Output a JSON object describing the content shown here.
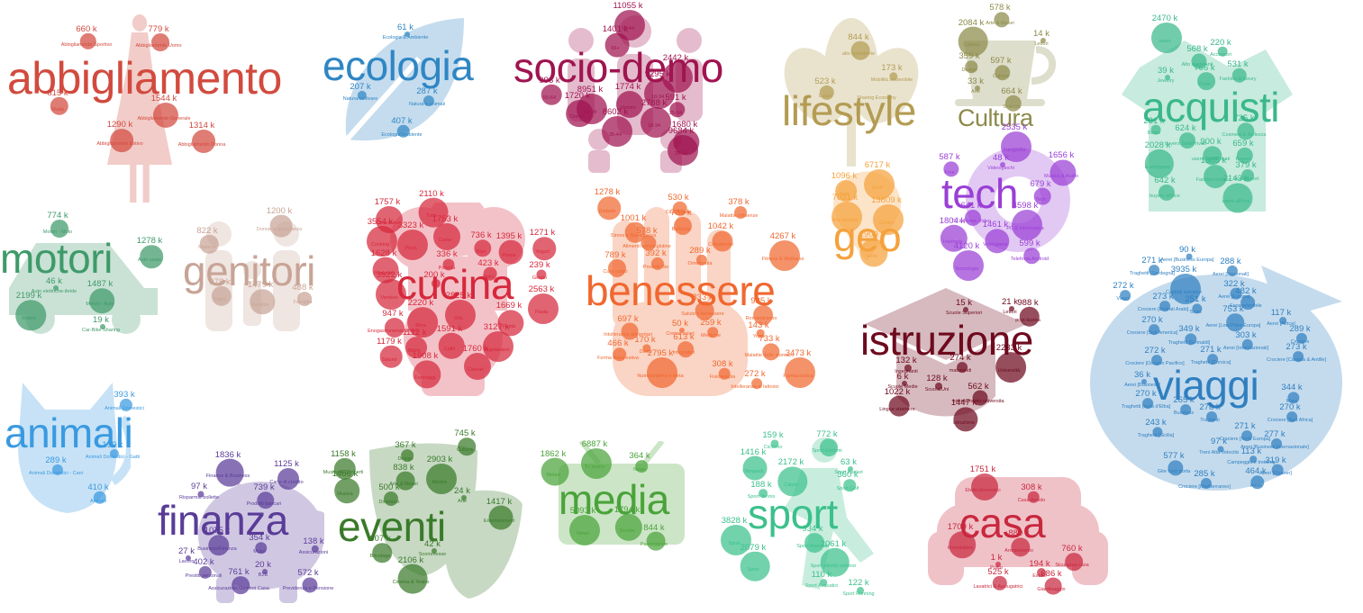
{
  "clusters": [
    {
      "id": "abbigliamento",
      "title": "abbigliamento",
      "color": "#d24a3e",
      "icon": "dress-icon",
      "items": [
        {
          "v": "660 k",
          "l": "Abbigliamento Sportivo"
        },
        {
          "v": "779 k",
          "l": "Abbigliamento Uomo"
        },
        {
          "v": "815 k",
          "l": "Moda"
        },
        {
          "v": "1544 k",
          "l": "Abbigliamento Generale"
        },
        {
          "v": "1290 k",
          "l": "Abbigliamento Estivo"
        },
        {
          "v": "1314 k",
          "l": "Abbigliamento Donna"
        }
      ]
    },
    {
      "id": "ecologia",
      "title": "ecologia",
      "color": "#2f86c4",
      "icon": "leaf-icon",
      "items": [
        {
          "v": "61 k",
          "l": "Ecologia & Ambiente"
        },
        {
          "v": "207 k",
          "l": "Natura/coltivare"
        },
        {
          "v": "287 k",
          "l": "Natura e animali"
        },
        {
          "v": "407 k",
          "l": "Ecologia/ambiente"
        }
      ]
    },
    {
      "id": "socio-demo",
      "title": "socio-demo",
      "color": "#a01450",
      "icon": "people-icon",
      "items": [
        {
          "v": "11055 k",
          "l": "18-44"
        },
        {
          "v": "1401 k",
          "l": "65+"
        },
        {
          "v": "2442 k",
          "l": ""
        },
        {
          "v": "998 k",
          "l": "55-64"
        },
        {
          "v": "1774 k",
          "l": "Uomini"
        },
        {
          "v": "9295 k",
          "l": "18-34"
        },
        {
          "v": "8951 k",
          "l": "18-24"
        },
        {
          "v": "591 k",
          "l": "25-34"
        },
        {
          "v": "1720 k",
          "l": "Donne"
        },
        {
          "v": "2788 k",
          "l": "18-34"
        },
        {
          "v": "8602 k",
          "l": "35-44"
        },
        {
          "v": "1680 k",
          "l": ""
        },
        {
          "v": "9684 k",
          "l": "25-54"
        }
      ]
    },
    {
      "id": "lifestyle",
      "title": "lifestyle",
      "color": "#b39c52",
      "icon": "lotus-icon",
      "items": [
        {
          "v": "844 k",
          "l": "alto spendente"
        },
        {
          "v": "173 k",
          "l": "Mobilità sostenibile"
        },
        {
          "v": "523 k",
          "l": "Lusso"
        },
        {
          "v": "",
          "l": "Sharing Economy"
        }
      ]
    },
    {
      "id": "cultura",
      "title": "Cultura",
      "color": "#8c8a4a",
      "icon": "teacup-icon",
      "items": [
        {
          "v": "578 k",
          "l": "Arte & Musei"
        },
        {
          "v": "2084 k",
          "l": "Cultura"
        },
        {
          "v": "14 k",
          "l": "Lettori"
        },
        {
          "v": "359 k",
          "l": "Design"
        },
        {
          "v": "597 k",
          "l": "Cultura"
        },
        {
          "v": "33 k",
          "l": "Arte"
        },
        {
          "v": "664 k",
          "l": "Scienza"
        }
      ]
    },
    {
      "id": "acquisti",
      "title": "acquisti",
      "color": "#3ab88a",
      "icon": "shopping-icon",
      "items": [
        {
          "v": "2470 k",
          "l": "users"
        },
        {
          "v": "220 k",
          "l": "Accessori"
        },
        {
          "v": "568 k",
          "l": "Alto spendenti"
        },
        {
          "v": "39 k",
          "l": "Jewelry"
        },
        {
          "v": "766 k",
          "l": "Orolo"
        },
        {
          "v": "531 k",
          "l": "Fashion & luxury"
        },
        {
          "v": "231 k",
          "l": "Borse"
        },
        {
          "v": "624 k",
          "l": "buyers SaldiPrivati"
        },
        {
          "v": "725 k",
          "l": "Cosmesi & Bellezza"
        },
        {
          "v": "900 k",
          "l": "users SaldiPrivati"
        },
        {
          "v": "659 k",
          "l": "Buyers"
        },
        {
          "v": "2028 k",
          "l": "E-shoppers"
        },
        {
          "v": "1305 k",
          "l": "Fashion women"
        },
        {
          "v": "379 k",
          "l": "Vestiti sport"
        },
        {
          "v": "642 k",
          "l": "buyers ePrice"
        },
        {
          "v": "2143 k",
          "l": "users ePrice"
        }
      ]
    },
    {
      "id": "motori",
      "title": "motori",
      "color": "#3f9a6a",
      "icon": "car-icon",
      "items": [
        {
          "v": "774 k",
          "l": "Motori - Moto"
        },
        {
          "v": "1278 k",
          "l": "Auto usate"
        },
        {
          "v": "46 k",
          "l": "Auto elettriche-ibride"
        },
        {
          "v": "1487 k",
          "l": "Motori - Auto"
        },
        {
          "v": "2199 k",
          "l": "Motori"
        },
        {
          "v": "19 k",
          "l": "Car-Bike Sharing"
        }
      ]
    },
    {
      "id": "genitori",
      "title": "genitori",
      "color": "#c8a496",
      "icon": "family-icon",
      "items": [
        {
          "v": "1200 k",
          "l": "Donne in gravidanza"
        },
        {
          "v": "822 k",
          "l": "Mamme"
        },
        {
          "v": "978 k",
          "l": "Papà"
        },
        {
          "v": "1479 k",
          "l": "Genitori"
        },
        {
          "v": "488 k",
          "l": "Famiglia"
        }
      ]
    },
    {
      "id": "cucina",
      "title": "cucina",
      "color": "#d6283c",
      "icon": "chef-icon",
      "items": [
        {
          "v": "1757 k",
          "l": "Cioccolato"
        },
        {
          "v": "2110 k",
          "l": "Torte"
        },
        {
          "v": "3554 k",
          "l": "Cooking"
        },
        {
          "v": "3323 k",
          "l": "Pizza"
        },
        {
          "v": "1753 k",
          "l": "Carne"
        },
        {
          "v": "736 k",
          "l": "Riso"
        },
        {
          "v": "1395 k",
          "l": "Pesce"
        },
        {
          "v": "1271 k",
          "l": "Yogurt"
        },
        {
          "v": "336 k",
          "l": "Polenta"
        },
        {
          "v": "1628 k",
          "l": "Merende"
        },
        {
          "v": "423 k",
          "l": "Dolci"
        },
        {
          "v": "239 k",
          "l": "Gelato"
        },
        {
          "v": "200 k",
          "l": ""
        },
        {
          "v": "3922 k",
          "l": "Verdure"
        },
        {
          "v": "2563 k",
          "l": "Pasta"
        },
        {
          "v": "2825 k",
          "l": "Olio"
        },
        {
          "v": "2220 k",
          "l": "Birra"
        },
        {
          "v": "947 k",
          "l": "Enogastronomia & Vini"
        },
        {
          "v": "1669 k",
          "l": "Frutta"
        },
        {
          "v": "1112 k",
          "l": "Bibite"
        },
        {
          "v": "1591 k",
          "l": "Caffè"
        },
        {
          "v": "3127 k",
          "l": "Vegetariano"
        },
        {
          "v": "1179 k",
          "l": "Salumi"
        },
        {
          "v": "1760 k",
          "l": "Cereali"
        },
        {
          "v": "1908 k",
          "l": "Formaggi"
        }
      ]
    },
    {
      "id": "benessere",
      "title": "benessere",
      "color": "#f06830",
      "icon": "hand-icon",
      "items": [
        {
          "v": "1278 k",
          "l": "Diabete"
        },
        {
          "v": "530 k",
          "l": "Cibo Salute"
        },
        {
          "v": "378 k",
          "l": "Malattie influenze"
        },
        {
          "v": "1001 k",
          "l": "Stress e Stanchezza"
        },
        {
          "v": "789 k",
          "l": "Bellezza"
        },
        {
          "v": "578 k",
          "l": "Alimenti senza glutine"
        },
        {
          "v": "1042 k",
          "l": "Colesterolo"
        },
        {
          "v": "4267 k",
          "l": "Fitness & Wellness"
        },
        {
          "v": "789 k",
          "l": "Cura corpo"
        },
        {
          "v": "392 k",
          "l": "Prodotti Bio"
        },
        {
          "v": "289 k",
          "l": "Omeopatia"
        },
        {
          "v": "833 k",
          "l": "Salute e benessere"
        },
        {
          "v": "935 k",
          "l": "Romanticismo"
        },
        {
          "v": "697 k",
          "l": "Intolleranze alimentari"
        },
        {
          "v": "50 k",
          "l": "Creme solari"
        },
        {
          "v": "259 k",
          "l": "Medicine"
        },
        {
          "v": "143 k",
          "l": "Yoga"
        },
        {
          "v": "466 k",
          "l": "Forma fisica estiva"
        },
        {
          "v": "170 k",
          "l": "Dieta"
        },
        {
          "v": "613 k",
          "l": "Integratori"
        },
        {
          "v": "733 k",
          "l": "Malattie dello stomaco"
        },
        {
          "v": "2795 k",
          "l": "Nutrizionismo e dieta"
        },
        {
          "v": "308 k",
          "l": "Fisioterapia"
        },
        {
          "v": "3473 k",
          "l": "Farmacoutica"
        },
        {
          "v": "272 k",
          "l": "Intolleranza al lattosio"
        }
      ]
    },
    {
      "id": "geo",
      "title": "geo",
      "color": "#f5a13c",
      "icon": "map-pin-icon",
      "items": [
        {
          "v": "1096 k",
          "l": "Sud"
        },
        {
          "v": "6717 k",
          "l": "Nord"
        },
        {
          "v": "7031 k",
          "l": "Alta densità"
        },
        {
          "v": "13809 k",
          "l": "Centro"
        },
        {
          "v": "1909 k",
          "l": "Isole"
        }
      ]
    },
    {
      "id": "tech",
      "title": "tech",
      "color": "#9a3fd6",
      "icon": "gear-icon",
      "items": [
        {
          "v": "2535 k",
          "l": "Fotografia"
        },
        {
          "v": "587 k",
          "l": "Free"
        },
        {
          "v": "48 k",
          "l": "Video/giochi"
        },
        {
          "v": "1656 k",
          "l": "Musica & Audio"
        },
        {
          "v": "679 k",
          "l": "Tech"
        },
        {
          "v": "641 k",
          "l": "TV & Home Video"
        },
        {
          "v": "4598 k",
          "l": "PC & informatica"
        },
        {
          "v": "1804 k",
          "l": "Telefonia"
        },
        {
          "v": "1461 k",
          "l": "Videogame"
        },
        {
          "v": "4120 k",
          "l": "Tecnologia"
        },
        {
          "v": "599 k",
          "l": "Telefonia Android"
        }
      ]
    },
    {
      "id": "istruzione",
      "title": "istruzione",
      "color": "#6e0a1e",
      "icon": "graduation-cap-icon",
      "items": [
        {
          "v": "15 k",
          "l": "Scuole Superiori"
        },
        {
          "v": "21 k",
          "l": "Lettori"
        },
        {
          "v": "988 k",
          "l": "post-laurea"
        },
        {
          "v": "132 k",
          "l": "Insegnanti"
        },
        {
          "v": "274 k",
          "l": "maturandi"
        },
        {
          "v": "2233 k",
          "l": "Università"
        },
        {
          "v": "6 k",
          "l": "Scuole Medie"
        },
        {
          "v": "128 k",
          "l": "Scuola/Uni"
        },
        {
          "v": "562 k",
          "l": "orientamento universita"
        },
        {
          "v": "1022 k",
          "l": "Lingue straniere"
        },
        {
          "v": "1447 k",
          "l": "Istruzione"
        }
      ]
    },
    {
      "id": "viaggi",
      "title": "viaggi",
      "color": "#2f7fc0",
      "icon": "airplane-icon",
      "items": [
        {
          "v": "90 k",
          "l": "Aerei [Business Europa]"
        },
        {
          "v": "271 k",
          "l": "Traghetti [Sardegna]"
        },
        {
          "v": "288 k",
          "l": "Aerei [Nazionali]"
        },
        {
          "v": "3935 k",
          "l": "Capitali europee"
        },
        {
          "v": "322 k",
          "l": "Aerei [Europa]"
        },
        {
          "v": "272 k",
          "l": "Viaggi"
        },
        {
          "v": "273 k",
          "l": "Crociere [Emirati Arabi]"
        },
        {
          "v": "251 k",
          "l": "Tours"
        },
        {
          "v": "482 k",
          "l": "Ecosostenibile"
        },
        {
          "v": "270 k",
          "l": "Crociere [Sud America]"
        },
        {
          "v": "753 k",
          "l": "Aerei [Low Price Europa]"
        },
        {
          "v": "117 k",
          "l": "Aerei [Africa]"
        },
        {
          "v": "349 k",
          "l": "Traghetti [Grimaldi]"
        },
        {
          "v": "303 k",
          "l": "Aerei [Internazionali]"
        },
        {
          "v": "289 k",
          "l": "Crociere"
        },
        {
          "v": "272 k",
          "l": "Crociere [Oceano Pacifico]"
        },
        {
          "v": "271 k",
          "l": "Traghetti [Corsica]"
        },
        {
          "v": "273 k",
          "l": "Crociere [Canada & Antille]"
        },
        {
          "v": "36 k",
          "l": "Aerei [Business]"
        },
        {
          "v": "344 k",
          "l": "Mare"
        },
        {
          "v": "270 k",
          "l": "Traghetti [Isola d'Elba]"
        },
        {
          "v": "265 k",
          "l": "Business"
        },
        {
          "v": "278 k",
          "l": "Traghetti"
        },
        {
          "v": "270 k",
          "l": "Crociere [Sud Africa]"
        },
        {
          "v": "243 k",
          "l": "Traghetti [Sicilia]"
        },
        {
          "v": "271 k",
          "l": "Crociere [Nord Europa]"
        },
        {
          "v": "97 k",
          "l": "Treni Alta Velocità"
        },
        {
          "v": "277 k",
          "l": "Aerei [Business Internazionale]"
        },
        {
          "v": "113 k",
          "l": "Campeggio e trekking"
        },
        {
          "v": "577 k",
          "l": "Gite fuori porta"
        },
        {
          "v": "319 k",
          "l": "Aerei [Flyaner]"
        },
        {
          "v": "285 k",
          "l": "Crociere [Mediterraneo]"
        },
        {
          "v": "464 k",
          "l": "Aerei"
        }
      ]
    },
    {
      "id": "animali",
      "title": "animali",
      "color": "#3a9ae0",
      "icon": "cat-icon",
      "items": [
        {
          "v": "393 k",
          "l": "Animali Domestici"
        },
        {
          "v": "199 k",
          "l": "Animali Domestici - Gatti"
        },
        {
          "v": "289 k",
          "l": "Animali Domestici - Cani"
        },
        {
          "v": "410 k",
          "l": "Animali"
        }
      ]
    },
    {
      "id": "finanza",
      "title": "finanza",
      "color": "#5a3c98",
      "icon": "piggy-bank-icon",
      "items": [
        {
          "v": "1836 k",
          "l": "Finance & Business"
        },
        {
          "v": "1125 k",
          "l": "Carte di credito"
        },
        {
          "v": "97 k",
          "l": "Risparmio bollette"
        },
        {
          "v": "739 k",
          "l": "Prodotti bancari"
        },
        {
          "v": "1075 k",
          "l": "Business/Finanza"
        },
        {
          "v": "354 k",
          "l": "Mutui"
        },
        {
          "v": "138 k",
          "l": "Assicurazioni"
        },
        {
          "v": "27 k",
          "l": "Lavoro"
        },
        {
          "v": "402 k",
          "l": "Prestiti personali"
        },
        {
          "v": "20 k",
          "l": "B2B"
        },
        {
          "v": "761 k",
          "l": "Assicurazioni Genitori Casa"
        },
        {
          "v": "572 k",
          "l": "Previdenza e Pensione"
        }
      ]
    },
    {
      "id": "eventi",
      "title": "eventi",
      "color": "#3a7a2a",
      "icon": "drama-masks-icon",
      "items": [
        {
          "v": "367 k",
          "l": "Design"
        },
        {
          "v": "745 k",
          "l": "Cultura"
        },
        {
          "v": "1158 k",
          "l": "Musica & Concerti"
        },
        {
          "v": "838 k",
          "l": "Arte & Musei"
        },
        {
          "v": "2903 k",
          "l": "Mostre"
        },
        {
          "v": "1486 k",
          "l": "Musica"
        },
        {
          "v": "500 k",
          "l": "Dinamico"
        },
        {
          "v": "24 k",
          "l": "Arte"
        },
        {
          "v": "1417 k",
          "l": "Entertainment"
        },
        {
          "v": "907 k",
          "l": "Bricolage"
        },
        {
          "v": "42 k",
          "l": "Scommesse"
        },
        {
          "v": "2106 k",
          "l": "Cinema & Teatro"
        }
      ]
    },
    {
      "id": "media",
      "title": "media",
      "color": "#4aa33a",
      "icon": "tv-icon",
      "items": [
        {
          "v": "1862 k",
          "l": "Meteo"
        },
        {
          "v": "6887 k",
          "l": "Tv lovers"
        },
        {
          "v": "364 k",
          "l": "News"
        },
        {
          "v": "5093 k",
          "l": "News"
        },
        {
          "v": "1794 k",
          "l": "Scuola"
        },
        {
          "v": "844 k",
          "l": "Passeggiate"
        }
      ]
    },
    {
      "id": "sport",
      "title": "sport",
      "color": "#3cc08c",
      "icon": "runner-icon",
      "items": [
        {
          "v": "159 k",
          "l": "Ciclismo"
        },
        {
          "v": "772 k",
          "l": "Sport Estremi"
        },
        {
          "v": "1416 k",
          "l": "Olimpiadi"
        },
        {
          "v": "63 k",
          "l": "Sport Basket"
        },
        {
          "v": "2172 k",
          "l": "Calcio"
        },
        {
          "v": "188 k",
          "l": "Sport Tennis"
        },
        {
          "v": "360 k",
          "l": "Sport Golf"
        },
        {
          "v": "3828 k",
          "l": "Sport"
        },
        {
          "v": "934 k",
          "l": "Sport Invernali"
        },
        {
          "v": "2079 k",
          "l": "Sport"
        },
        {
          "v": "2061 k",
          "l": "Sport attività outdoor"
        },
        {
          "v": "110 k",
          "l": "Sport Acquatici"
        },
        {
          "v": "122 k",
          "l": "Sport Running"
        }
      ]
    },
    {
      "id": "casa",
      "title": "casa",
      "color": "#c8283e",
      "icon": "sofa-icon",
      "items": [
        {
          "v": "1751 k",
          "l": "Elettrodomestici"
        },
        {
          "v": "308 k",
          "l": "Casa Arredo"
        },
        {
          "v": "1709 k",
          "l": "Immobiliare"
        },
        {
          "v": "889 k",
          "l": "Arredamento"
        },
        {
          "v": "1 k",
          "l": "Pulito"
        },
        {
          "v": "760 k",
          "l": "Sicurezza casa"
        },
        {
          "v": "194 k",
          "l": "Estate"
        },
        {
          "v": "525 k",
          "l": "Lavatrici & Asciugatrici"
        },
        {
          "v": "686 k",
          "l": "Giardinaggio"
        }
      ]
    }
  ]
}
